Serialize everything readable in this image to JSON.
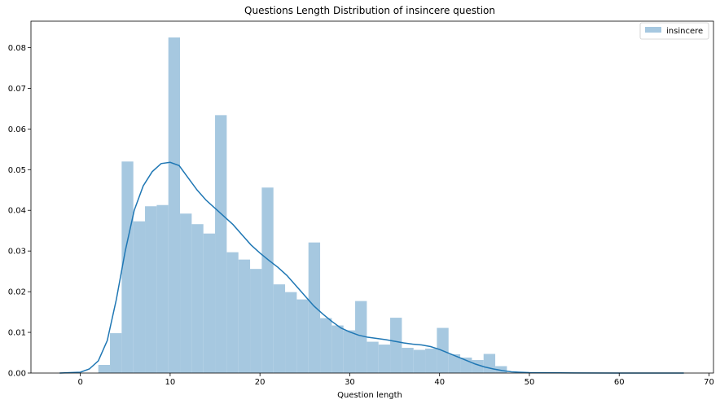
{
  "chart_data": {
    "type": "histogram",
    "title": "Questions Length Distribution of insincere question",
    "xlabel": "Question length",
    "ylabel": "",
    "xlim": [
      -5.5,
      70.5
    ],
    "ylim": [
      0,
      0.0865
    ],
    "xticks": [
      0,
      10,
      20,
      30,
      40,
      50,
      60,
      70
    ],
    "yticks": [
      0.0,
      0.01,
      0.02,
      0.03,
      0.04,
      0.05,
      0.06,
      0.07,
      0.08
    ],
    "ytick_labels": [
      "0.00",
      "0.01",
      "0.02",
      "0.03",
      "0.04",
      "0.05",
      "0.06",
      "0.07",
      "0.08"
    ],
    "grid": false,
    "legend": {
      "position": "top-right",
      "entries": [
        "insincere"
      ]
    },
    "series": [
      {
        "name": "insincere",
        "kind": "bars",
        "color": "#a6c8e0",
        "bin_edges": [
          2,
          3.3,
          4.6,
          5.9,
          7.2,
          8.5,
          9.8,
          11.1,
          12.4,
          13.7,
          15.0,
          16.3,
          17.6,
          18.9,
          20.2,
          21.5,
          22.8,
          24.1,
          25.4,
          26.7,
          28.0,
          29.3,
          30.6,
          31.9,
          33.2,
          34.5,
          35.8,
          37.1,
          38.4,
          39.7,
          41.0,
          42.3,
          43.6,
          44.9,
          46.2,
          47.5
        ],
        "values": [
          0.002,
          0.0098,
          0.052,
          0.0373,
          0.041,
          0.0413,
          0.0825,
          0.0392,
          0.0366,
          0.0343,
          0.0634,
          0.0297,
          0.0279,
          0.0256,
          0.0456,
          0.0218,
          0.0199,
          0.0181,
          0.0321,
          0.0135,
          0.0117,
          0.0105,
          0.0177,
          0.0077,
          0.007,
          0.0136,
          0.0062,
          0.0057,
          0.006,
          0.0111,
          0.0046,
          0.0038,
          0.0032,
          0.0047,
          0.0017
        ]
      },
      {
        "name": "kde",
        "kind": "line",
        "color": "#1f77b4",
        "x": [
          -2.3,
          0,
          1,
          2,
          3,
          4,
          5,
          6,
          7,
          8,
          9,
          10,
          11,
          12,
          13,
          14,
          15,
          16,
          17,
          18,
          19,
          20,
          21,
          22,
          23,
          24,
          25,
          26,
          27,
          28,
          29,
          30,
          31,
          32,
          33,
          34,
          35,
          36,
          37,
          38,
          39,
          40,
          41,
          42,
          43,
          44,
          45,
          46,
          47,
          48,
          50,
          55,
          60,
          67.2
        ],
        "y": [
          0,
          0.0002,
          0.001,
          0.003,
          0.008,
          0.018,
          0.03,
          0.04,
          0.046,
          0.0495,
          0.0515,
          0.0518,
          0.051,
          0.048,
          0.045,
          0.0425,
          0.0405,
          0.0385,
          0.0365,
          0.034,
          0.0315,
          0.0295,
          0.0277,
          0.026,
          0.024,
          0.0215,
          0.019,
          0.0165,
          0.0145,
          0.0127,
          0.0111,
          0.0101,
          0.0093,
          0.0088,
          0.0085,
          0.0082,
          0.0078,
          0.0074,
          0.0071,
          0.0069,
          0.0065,
          0.0058,
          0.0049,
          0.004,
          0.0031,
          0.0022,
          0.0015,
          0.001,
          0.0006,
          0.0003,
          0.0001,
          2e-05,
          5e-06,
          0
        ]
      }
    ]
  }
}
